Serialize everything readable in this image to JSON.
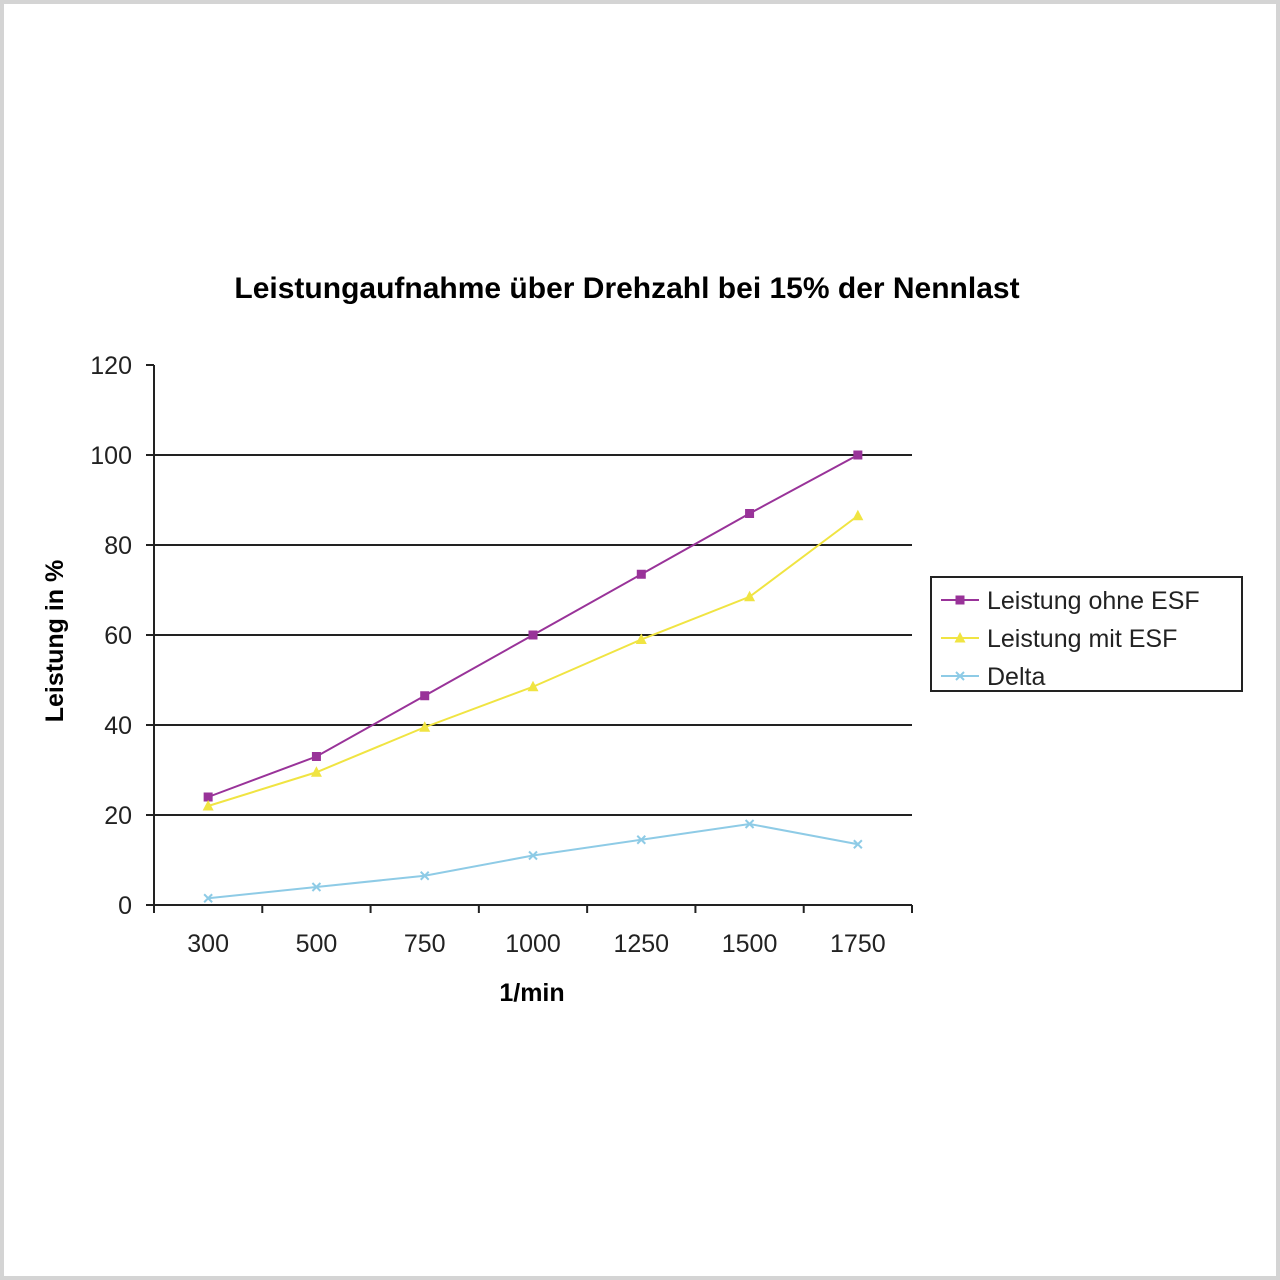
{
  "chart_data": {
    "type": "line",
    "title": "Leistungaufnahme über Drehzahl bei 15% der Nennlast",
    "xlabel": "1/min",
    "ylabel": "Leistung in %",
    "categories": [
      "300",
      "500",
      "750",
      "1000",
      "1250",
      "1500",
      "1750"
    ],
    "ylim": [
      0,
      120
    ],
    "yticks": [
      "0",
      "20",
      "40",
      "60",
      "80",
      "100",
      "120"
    ],
    "grid": true,
    "legend_position": "right",
    "series": [
      {
        "name": "Leistung ohne ESF",
        "color": "#993399",
        "marker": "square",
        "values": [
          24,
          33,
          46.5,
          60,
          73.5,
          87,
          100
        ]
      },
      {
        "name": "Leistung mit ESF",
        "color": "#f0e442",
        "marker": "triangle",
        "values": [
          22,
          29.5,
          39.5,
          48.5,
          59,
          68.5,
          86.5
        ]
      },
      {
        "name": "Delta",
        "color": "#8ecbe6",
        "marker": "x",
        "values": [
          1.5,
          4,
          6.5,
          11,
          14.5,
          18,
          13.5
        ]
      }
    ]
  }
}
